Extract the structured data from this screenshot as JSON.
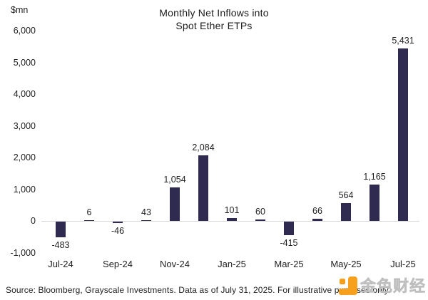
{
  "header": {
    "title_line1": "Monthly Net Inflows into",
    "title_line2": "Spot Ether ETPs"
  },
  "chart_data": {
    "type": "bar",
    "title": "Monthly Net Inflows into Spot Ether ETPs",
    "ylabel": "$mn",
    "xlabel": "",
    "categories": [
      "Jul-24",
      "Aug-24",
      "Sep-24",
      "Oct-24",
      "Nov-24",
      "Dec-24",
      "Jan-25",
      "Feb-25",
      "Mar-25",
      "Apr-25",
      "May-25",
      "Jun-25",
      "Jul-25"
    ],
    "values": [
      -483,
      6,
      -46,
      43,
      1054,
      2084,
      101,
      60,
      -415,
      66,
      564,
      1165,
      5431
    ],
    "data_labels": [
      "-483",
      "6",
      "-46",
      "43",
      "1,054",
      "2,084",
      "101",
      "60",
      "-415",
      "66",
      "564",
      "1,165",
      "5,431"
    ],
    "x_tick_labels": [
      "Jul-24",
      "Sep-24",
      "Nov-24",
      "Jan-25",
      "Mar-25",
      "May-25",
      "Jul-25"
    ],
    "x_tick_indices": [
      0,
      2,
      4,
      6,
      8,
      10,
      12
    ],
    "y_ticks": [
      6000,
      5000,
      4000,
      3000,
      2000,
      1000,
      0,
      -1000
    ],
    "y_tick_labels": [
      "6,000",
      "5,000",
      "4,000",
      "3,000",
      "2,000",
      "1,000",
      "0",
      "-1,000"
    ],
    "ylim": [
      -1000,
      6000
    ],
    "grid": false,
    "legend": "none",
    "bar_color": "#2f2a4f",
    "axis_line_color": "#d8d8d8"
  },
  "footer": {
    "source_text": "Source: Bloomberg, Grayscale Investments. Data as of July 31, 2025. For illustrative purposes only."
  },
  "watermark": {
    "logo_icon": "jinse-finance-logo",
    "logo_color": "#F6A01E",
    "text": "金色财经"
  }
}
